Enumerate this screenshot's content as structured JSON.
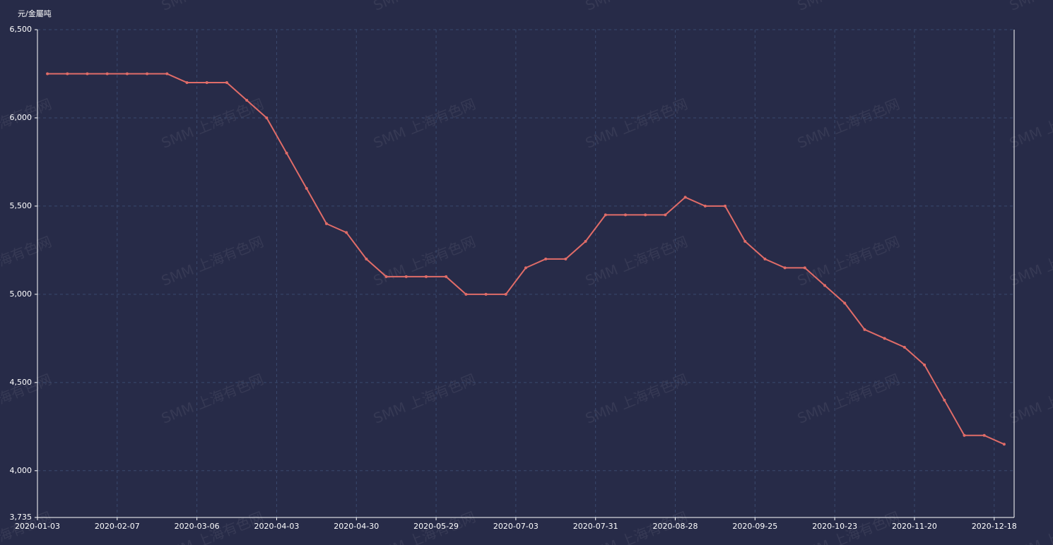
{
  "chart_data": {
    "type": "line",
    "y_label": "元/金屬吨",
    "watermark": "SMM 上海有色网",
    "categories": [
      "2020-01-03",
      null,
      null,
      null,
      "2020-02-07",
      null,
      null,
      null,
      "2020-03-06",
      null,
      null,
      null,
      "2020-04-03",
      null,
      null,
      null,
      "2020-04-30",
      null,
      null,
      null,
      "2020-05-29",
      null,
      null,
      null,
      "2020-07-03",
      null,
      null,
      null,
      "2020-07-31",
      null,
      null,
      null,
      "2020-08-28",
      null,
      null,
      null,
      "2020-09-25",
      null,
      null,
      null,
      "2020-10-23",
      null,
      null,
      null,
      "2020-11-20",
      null,
      null,
      null,
      "2020-12-18"
    ],
    "series": [
      {
        "color": "#e06c68",
        "values": [
          6250,
          6250,
          6250,
          6250,
          6250,
          6250,
          6250,
          6200,
          6200,
          6200,
          6100,
          6000,
          5800,
          5600,
          5400,
          5350,
          5200,
          5100,
          5100,
          5100,
          5100,
          5000,
          5000,
          5000,
          5150,
          5200,
          5200,
          5300,
          5450,
          5450,
          5450,
          5450,
          5550,
          5500,
          5500,
          5300,
          5200,
          5150,
          5150,
          5050,
          4950,
          4800,
          4750,
          4700,
          4600,
          4400,
          4200,
          4200,
          4150
        ]
      }
    ],
    "ylim": [
      3735,
      6500
    ],
    "yticks": [
      {
        "value": 3735,
        "label": "3,735"
      },
      {
        "value": 4000,
        "label": "4,000"
      },
      {
        "value": 4500,
        "label": "4,500"
      },
      {
        "value": 5000,
        "label": "5,000"
      },
      {
        "value": 5500,
        "label": "5,500"
      },
      {
        "value": 6000,
        "label": "6,000"
      },
      {
        "value": 6500,
        "label": "6,500"
      }
    ],
    "grid": true
  }
}
